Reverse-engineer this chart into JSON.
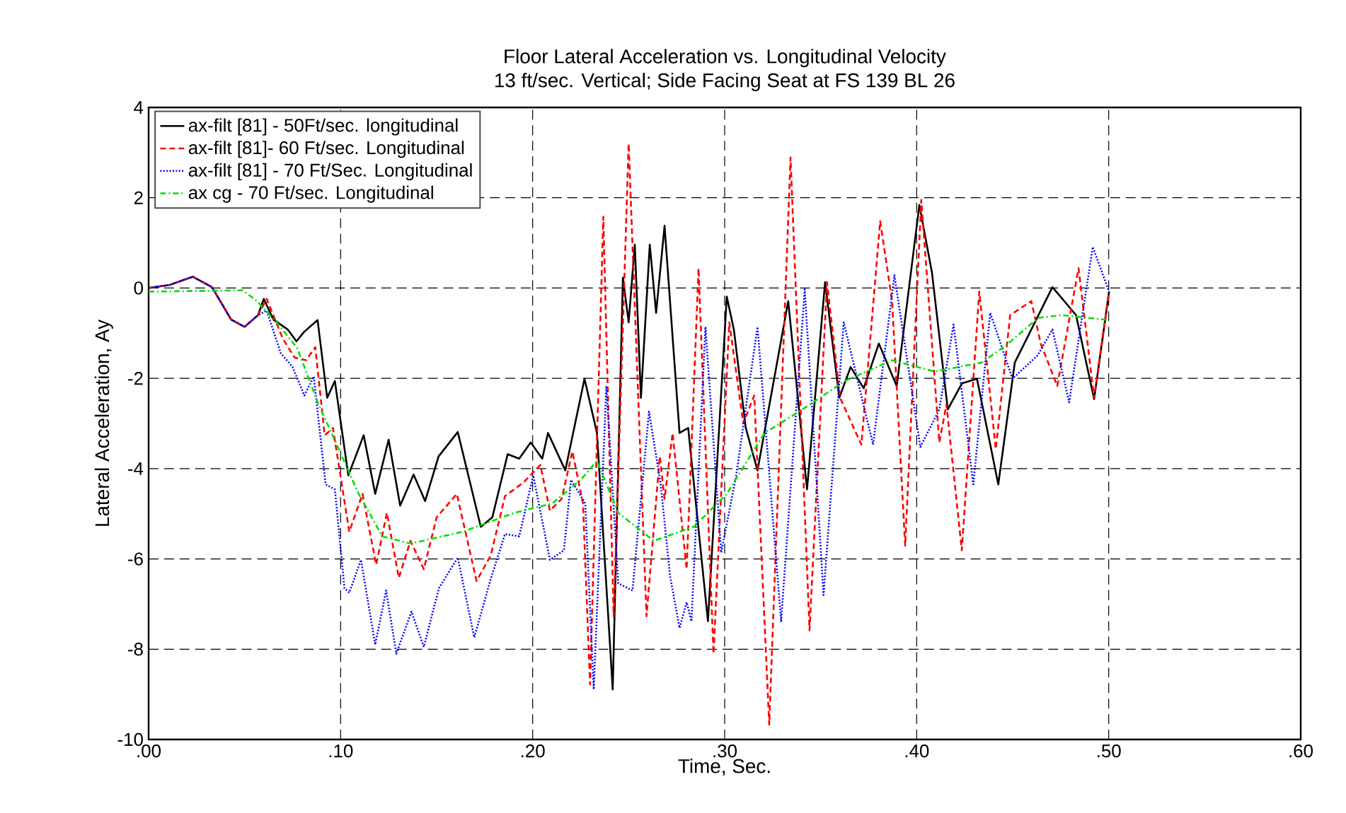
{
  "chart_data": {
    "type": "line",
    "title": "Floor Lateral Acceleration vs. Longitudinal Velocity",
    "subtitle": "13 ft/sec. Vertical; Side Facing Seat at FS 139 BL 26",
    "xlabel": "Time, Sec.",
    "ylabel": "Lateral Acceleration, Ay",
    "xlim": [
      0,
      0.6
    ],
    "ylim": [
      -10,
      4
    ],
    "xticks": [
      {
        "value": 0,
        "label": ".00"
      },
      {
        "value": 0.1,
        "label": ".10"
      },
      {
        "value": 0.2,
        "label": ".20"
      },
      {
        "value": 0.3,
        "label": ".30"
      },
      {
        "value": 0.4,
        "label": ".40"
      },
      {
        "value": 0.5,
        "label": ".50"
      },
      {
        "value": 0.6,
        "label": ".60"
      }
    ],
    "yticks": [
      -10,
      -8,
      -6,
      -4,
      -2,
      0,
      2,
      4
    ],
    "grid": true,
    "legend": "top left",
    "marker": "none",
    "series": [
      {
        "name": "ax-filt [81] - 50Ft/sec. longitudinal",
        "color": "#000000",
        "line_style": "solid",
        "x": [
          0,
          0.011,
          0.023,
          0.033,
          0.043,
          0.05,
          0.057,
          0.06,
          0.065,
          0.0725,
          0.077,
          0.081,
          0.088,
          0.093,
          0.097,
          0.104,
          0.112,
          0.118,
          0.125,
          0.131,
          0.138,
          0.144,
          0.151,
          0.161,
          0.173,
          0.179,
          0.187,
          0.193,
          0.199,
          0.205,
          0.208,
          0.217,
          0.227,
          0.2335,
          0.2417,
          0.247,
          0.25,
          0.2532,
          0.2564,
          0.261,
          0.2643,
          0.2687,
          0.2765,
          0.281,
          0.2913,
          0.3011,
          0.3048,
          0.311,
          0.3171,
          0.3331,
          0.3429,
          0.3523,
          0.3597,
          0.3656,
          0.3724,
          0.3803,
          0.3896,
          0.4014,
          0.408,
          0.4162,
          0.4236,
          0.4314,
          0.4425,
          0.4511,
          0.4597,
          0.4707,
          0.483,
          0.4924,
          0.5002
        ],
        "values": [
          0,
          0.07,
          0.25,
          0.02,
          -0.7,
          -0.86,
          -0.6,
          -0.24,
          -0.7,
          -0.92,
          -1.18,
          -0.97,
          -0.71,
          -2.43,
          -2.06,
          -4.15,
          -3.26,
          -4.56,
          -3.36,
          -4.82,
          -4.13,
          -4.72,
          -3.73,
          -3.19,
          -5.29,
          -5.08,
          -3.68,
          -3.78,
          -3.42,
          -3.78,
          -3.21,
          -4.04,
          -2.01,
          -3.21,
          -8.89,
          0.23,
          -0.76,
          0.96,
          -2.43,
          0.96,
          -0.55,
          1.38,
          -3.21,
          -3.1,
          -7.38,
          -0.19,
          -0.92,
          -3.1,
          -4.04,
          -0.29,
          -4.46,
          0.13,
          -2.43,
          -1.75,
          -2.22,
          -1.23,
          -2.17,
          1.84,
          0.33,
          -2.69,
          -2.11,
          -2.01,
          -4.35,
          -1.65,
          -0.92,
          0.02,
          -0.6,
          -2.46,
          -0.08
        ]
      },
      {
        "name": "ax-filt [81]- 60 Ft/sec. Longitudinal",
        "color": "#ff0000",
        "line_style": "dashed",
        "x": [
          0,
          0.011,
          0.023,
          0.033,
          0.043,
          0.05,
          0.057,
          0.0615,
          0.07,
          0.076,
          0.082,
          0.0868,
          0.0917,
          0.096,
          0.1045,
          0.1114,
          0.1185,
          0.1241,
          0.1303,
          0.1364,
          0.1433,
          0.15,
          0.1605,
          0.1708,
          0.1782,
          0.1856,
          0.1954,
          0.204,
          0.209,
          0.2151,
          0.2207,
          0.2262,
          0.2299,
          0.2368,
          0.2422,
          0.25,
          0.2593,
          0.2662,
          0.2687,
          0.2729,
          0.2802,
          0.2864,
          0.2942,
          0.3024,
          0.3097,
          0.3154,
          0.3232,
          0.3343,
          0.3442,
          0.3533,
          0.3601,
          0.3712,
          0.381,
          0.3872,
          0.394,
          0.4024,
          0.4118,
          0.4155,
          0.4235,
          0.4326,
          0.4412,
          0.4487,
          0.4597,
          0.4646,
          0.4732,
          0.4843,
          0.4924,
          0.5002
        ],
        "values": [
          0,
          0.07,
          0.25,
          0.02,
          -0.7,
          -0.86,
          -0.6,
          -0.24,
          -1.13,
          -1.54,
          -1.6,
          -1.31,
          -3.26,
          -3.1,
          -5.4,
          -4.56,
          -6.13,
          -4.98,
          -6.42,
          -5.6,
          -6.23,
          -5.08,
          -4.56,
          -6.49,
          -5.92,
          -4.61,
          -4.3,
          -3.92,
          -4.93,
          -4.67,
          -3.62,
          -4.77,
          -8.78,
          1.58,
          -7.27,
          3.2,
          -7.27,
          -3.73,
          -4.67,
          -3.21,
          -6.23,
          0.44,
          -8.1,
          -0.76,
          -3.0,
          -2.38,
          -9.67,
          2.89,
          -7.58,
          0.13,
          -2.43,
          -3.47,
          1.48,
          -0.29,
          -5.71,
          1.95,
          -3.42,
          -2.58,
          -5.81,
          -0.08,
          -3.57,
          -0.6,
          -0.29,
          -1.23,
          -2.17,
          0.44,
          -2.43,
          -0.08
        ]
      },
      {
        "name": "ax-filt [81] - 70 Ft/Sec. Longitudinal",
        "color": "#0000ff",
        "line_style": "dotted",
        "x": [
          0,
          0.011,
          0.023,
          0.033,
          0.043,
          0.05,
          0.057,
          0.0615,
          0.0688,
          0.075,
          0.0811,
          0.086,
          0.0922,
          0.097,
          0.102,
          0.1045,
          0.1106,
          0.118,
          0.1237,
          0.129,
          0.1369,
          0.1433,
          0.1512,
          0.161,
          0.1696,
          0.1782,
          0.1856,
          0.193,
          0.2003,
          0.209,
          0.2163,
          0.22,
          0.2274,
          0.2318,
          0.2384,
          0.2446,
          0.252,
          0.2606,
          0.2667,
          0.2716,
          0.2765,
          0.2802,
          0.2827,
          0.29,
          0.2982,
          0.306,
          0.3171,
          0.3294,
          0.3417,
          0.3515,
          0.362,
          0.3773,
          0.3884,
          0.4019,
          0.4118,
          0.4192,
          0.4295,
          0.4383,
          0.4499,
          0.463,
          0.4707,
          0.4794,
          0.4917,
          0.5002
        ],
        "values": [
          0,
          0.07,
          0.25,
          0.02,
          -0.7,
          -0.86,
          -0.6,
          -0.5,
          -1.44,
          -1.75,
          -2.38,
          -1.96,
          -4.35,
          -4.46,
          -6.65,
          -6.75,
          -6.02,
          -7.9,
          -6.7,
          -8.1,
          -7.17,
          -7.95,
          -6.65,
          -5.97,
          -7.74,
          -6.44,
          -5.45,
          -5.5,
          -4.15,
          -6.02,
          -5.81,
          -4.25,
          -4.77,
          -8.89,
          -2.17,
          -6.54,
          -6.7,
          -2.74,
          -4.35,
          -6.39,
          -7.53,
          -6.96,
          -7.38,
          -0.86,
          -5.86,
          -4.15,
          -0.86,
          -7.38,
          -0.03,
          -6.8,
          -0.76,
          -3.47,
          0.28,
          -3.52,
          -2.69,
          -0.81,
          -4.35,
          -0.55,
          -2.01,
          -1.49,
          -0.92,
          -2.53,
          0.91,
          -0.08
        ]
      },
      {
        "name": "ax cg   - 70 Ft/sec. Longitudinal",
        "color": "#00e000",
        "line_style": "dashdot",
        "x": [
          0,
          0.049,
          0.0565,
          0.0676,
          0.0774,
          0.0885,
          0.0996,
          0.1094,
          0.1217,
          0.1364,
          0.1635,
          0.1905,
          0.2102,
          0.225,
          0.2335,
          0.2446,
          0.2631,
          0.2839,
          0.3011,
          0.3208,
          0.3405,
          0.3626,
          0.3872,
          0.4093,
          0.4339,
          0.4462,
          0.4634,
          0.4757,
          0.5002
        ],
        "values": [
          -0.08,
          -0.05,
          -0.29,
          -0.81,
          -1.33,
          -2.58,
          -3.62,
          -4.56,
          -5.5,
          -5.66,
          -5.4,
          -4.98,
          -4.77,
          -4.25,
          -3.83,
          -4.98,
          -5.6,
          -5.29,
          -4.56,
          -3.21,
          -2.69,
          -2.06,
          -1.6,
          -1.85,
          -1.65,
          -1.28,
          -0.66,
          -0.6,
          -0.71
        ]
      }
    ]
  }
}
